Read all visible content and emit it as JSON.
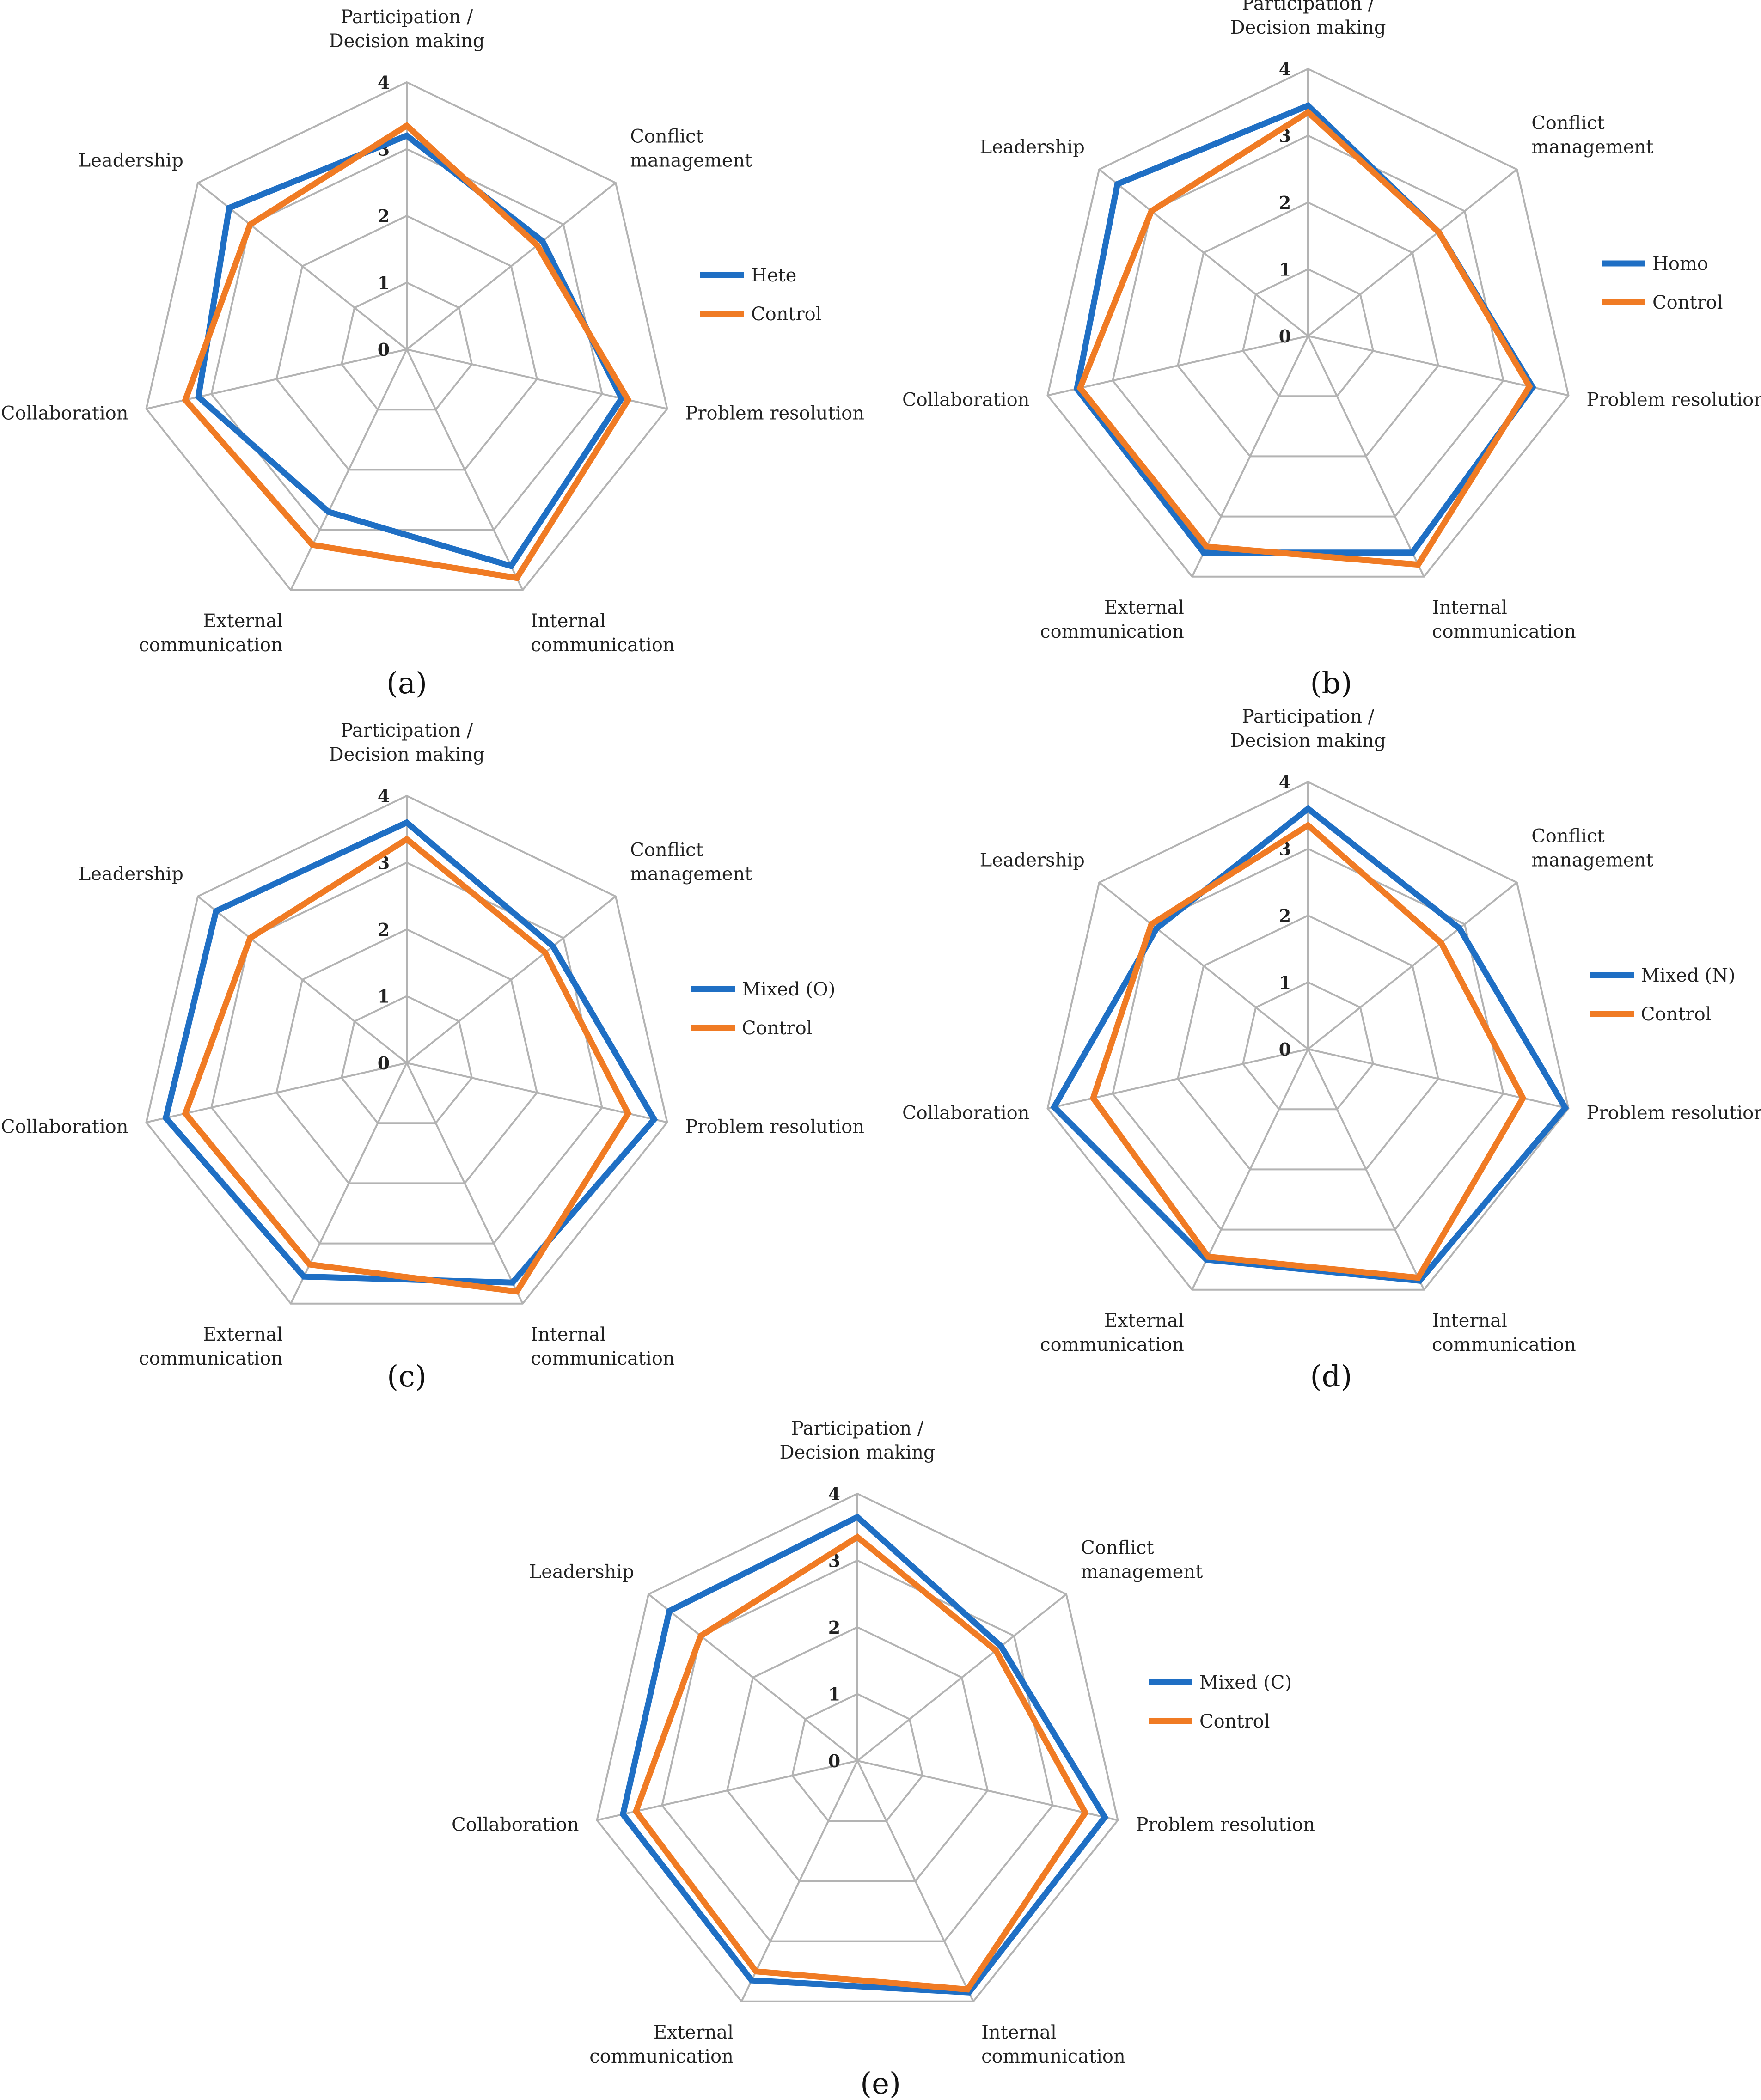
{
  "chart_data": [
    {
      "type": "radar",
      "panel_label": "(a)",
      "categories": [
        "Participation /|Decision making",
        "Conflict|management",
        "Problem resolution",
        "Internal|communication",
        "External|communication",
        "Collaboration",
        "Leadership"
      ],
      "rlim": [
        0,
        4
      ],
      "ticks": [
        "0",
        "1",
        "2",
        "3",
        "4"
      ],
      "grid": true,
      "legend": "right",
      "series": [
        {
          "name": "Hete",
          "color": "#1f6fc4",
          "values": [
            3.2,
            2.6,
            3.3,
            3.6,
            2.7,
            3.2,
            3.4
          ]
        },
        {
          "name": "Control",
          "color": "#f07b24",
          "values": [
            3.35,
            2.5,
            3.4,
            3.8,
            3.25,
            3.4,
            3.0
          ]
        }
      ]
    },
    {
      "type": "radar",
      "panel_label": "(b)",
      "categories": [
        "Participation /|Decision making",
        "Conflict|management",
        "Problem resolution",
        "Internal|communication",
        "External|communication",
        "Collaboration",
        "Leadership"
      ],
      "rlim": [
        0,
        4
      ],
      "ticks": [
        "0",
        "1",
        "2",
        "3",
        "4"
      ],
      "grid": true,
      "legend": "right",
      "series": [
        {
          "name": "Homo",
          "color": "#1f6fc4",
          "values": [
            3.45,
            2.5,
            3.45,
            3.6,
            3.6,
            3.55,
            3.65
          ]
        },
        {
          "name": "Control",
          "color": "#f07b24",
          "values": [
            3.35,
            2.5,
            3.4,
            3.8,
            3.5,
            3.5,
            3.0
          ]
        }
      ]
    },
    {
      "type": "radar",
      "panel_label": "(c)",
      "categories": [
        "Participation /|Decision making",
        "Conflict|management",
        "Problem resolution",
        "Internal|communication",
        "External|communication",
        "Collaboration",
        "Leadership"
      ],
      "rlim": [
        0,
        4
      ],
      "ticks": [
        "0",
        "1",
        "2",
        "3",
        "4"
      ],
      "grid": true,
      "legend": "right",
      "series": [
        {
          "name": "Mixed (O)",
          "color": "#1f6fc4",
          "values": [
            3.6,
            2.8,
            3.8,
            3.65,
            3.55,
            3.7,
            3.65
          ]
        },
        {
          "name": "Control",
          "color": "#f07b24",
          "values": [
            3.35,
            2.65,
            3.4,
            3.8,
            3.35,
            3.4,
            3.0
          ]
        }
      ]
    },
    {
      "type": "radar",
      "panel_label": "(d)",
      "categories": [
        "Participation /|Decision making",
        "Conflict|management",
        "Problem resolution",
        "Internal|communication",
        "External|communication",
        "Collaboration",
        "Leadership"
      ],
      "rlim": [
        0,
        4
      ],
      "ticks": [
        "0",
        "1",
        "2",
        "3",
        "4"
      ],
      "grid": true,
      "legend": "right",
      "series": [
        {
          "name": "Mixed (N)",
          "color": "#1f6fc4",
          "values": [
            3.6,
            2.9,
            3.95,
            3.85,
            3.5,
            3.9,
            2.9
          ]
        },
        {
          "name": "Control",
          "color": "#f07b24",
          "values": [
            3.35,
            2.55,
            3.3,
            3.8,
            3.45,
            3.3,
            3.0
          ]
        }
      ]
    },
    {
      "type": "radar",
      "panel_label": "(e)",
      "categories": [
        "Participation /|Decision making",
        "Conflict|management",
        "Problem resolution",
        "Internal|communication",
        "External|communication",
        "Collaboration",
        "Leadership"
      ],
      "rlim": [
        0,
        4
      ],
      "ticks": [
        "0",
        "1",
        "2",
        "3",
        "4"
      ],
      "grid": true,
      "legend": "right",
      "series": [
        {
          "name": "Mixed (C)",
          "color": "#1f6fc4",
          "values": [
            3.65,
            2.75,
            3.8,
            3.85,
            3.65,
            3.6,
            3.6
          ]
        },
        {
          "name": "Control",
          "color": "#f07b24",
          "values": [
            3.35,
            2.65,
            3.5,
            3.8,
            3.5,
            3.4,
            3.0
          ]
        }
      ]
    }
  ]
}
